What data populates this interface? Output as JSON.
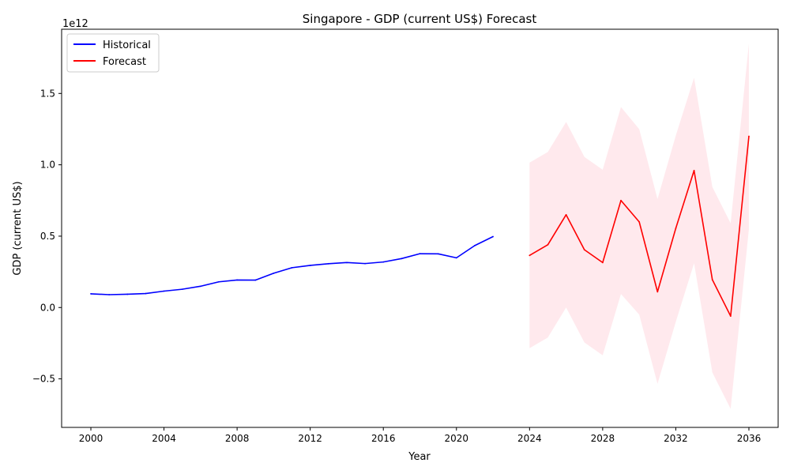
{
  "chart_data": {
    "type": "line",
    "title": "Singapore - GDP (current US$) Forecast",
    "xlabel": "Year",
    "ylabel": "GDP (current US$)",
    "y_scale_label": "1e12",
    "xlim": [
      1998.4,
      2037.6
    ],
    "ylim": [
      -0.84,
      1.95
    ],
    "x_ticks": [
      2000,
      2004,
      2008,
      2012,
      2016,
      2020,
      2024,
      2028,
      2032,
      2036
    ],
    "x_tick_labels": [
      "2000",
      "2004",
      "2008",
      "2012",
      "2016",
      "2020",
      "2024",
      "2028",
      "2032",
      "2036"
    ],
    "y_ticks": [
      -0.5,
      0.0,
      0.5,
      1.0,
      1.5
    ],
    "y_tick_labels": [
      "−0.5",
      "0.0",
      "0.5",
      "1.0",
      "1.5"
    ],
    "legend_position": "top-left",
    "series": [
      {
        "name": "Historical",
        "color": "#0000ff",
        "x": [
          2000,
          2001,
          2002,
          2003,
          2004,
          2005,
          2006,
          2007,
          2008,
          2009,
          2010,
          2011,
          2012,
          2013,
          2014,
          2015,
          2016,
          2017,
          2018,
          2019,
          2020,
          2021,
          2022
        ],
        "values": [
          0.096,
          0.09,
          0.093,
          0.098,
          0.115,
          0.128,
          0.149,
          0.18,
          0.193,
          0.192,
          0.24,
          0.279,
          0.295,
          0.307,
          0.315,
          0.308,
          0.319,
          0.343,
          0.377,
          0.376,
          0.348,
          0.434,
          0.497
        ]
      },
      {
        "name": "Forecast",
        "color": "#ff0000",
        "x": [
          2024,
          2025,
          2026,
          2027,
          2028,
          2029,
          2030,
          2031,
          2032,
          2033,
          2034,
          2035,
          2036
        ],
        "values": [
          0.365,
          0.44,
          0.65,
          0.405,
          0.315,
          0.75,
          0.6,
          0.11,
          0.555,
          0.96,
          0.195,
          -0.06,
          1.2
        ],
        "lower": [
          -0.285,
          -0.21,
          0.0,
          -0.245,
          -0.335,
          0.095,
          -0.05,
          -0.535,
          -0.1,
          0.31,
          -0.455,
          -0.71,
          0.55
        ],
        "upper": [
          1.015,
          1.09,
          1.3,
          1.055,
          0.965,
          1.405,
          1.25,
          0.76,
          1.205,
          1.61,
          0.845,
          0.59,
          1.85
        ],
        "band_color": "#ffc0cb"
      }
    ]
  }
}
